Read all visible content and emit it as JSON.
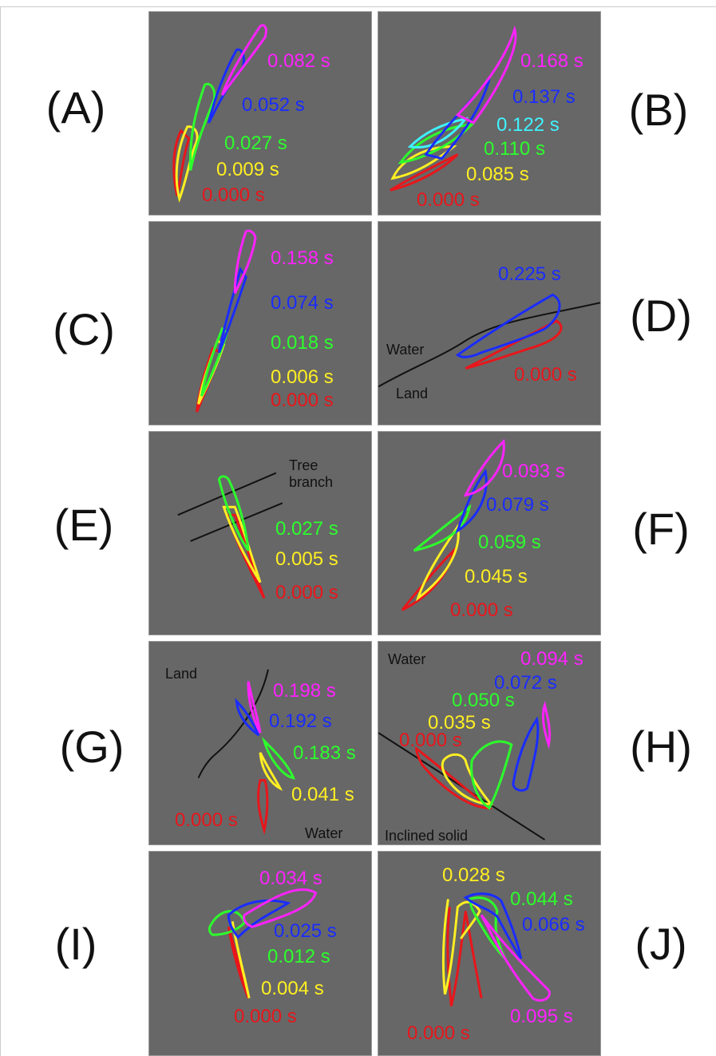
{
  "colors": {
    "red": "#e8161b",
    "yellow": "#ffef22",
    "green": "#2cff2c",
    "blue": "#1a2cff",
    "cyan": "#3ff3ff",
    "magenta": "#ff22ff",
    "panel": "#676767",
    "line": "#111111"
  },
  "panels": {
    "A": {
      "letter": "(A)",
      "times": {
        "magenta": "0.082 s",
        "blue": "0.052 s",
        "green": "0.027 s",
        "yellow": "0.009 s",
        "red": "0.000 s"
      }
    },
    "B": {
      "letter": "(B)",
      "times": {
        "magenta": "0.168 s",
        "blue": "0.137 s",
        "cyan": "0.122 s",
        "green": "0.110 s",
        "yellow": "0.085 s",
        "red": "0.000 s"
      }
    },
    "C": {
      "letter": "(C)",
      "times": {
        "magenta": "0.158 s",
        "blue": "0.074 s",
        "green": "0.018 s",
        "yellow": "0.006 s",
        "red": "0.000 s"
      }
    },
    "D": {
      "letter": "(D)",
      "times": {
        "blue": "0.225 s",
        "red": "0.000 s"
      },
      "notes": {
        "water": "Water",
        "land": "Land"
      }
    },
    "E": {
      "letter": "(E)",
      "times": {
        "green": "0.027 s",
        "yellow": "0.005 s",
        "red": "0.000 s"
      },
      "notes": {
        "branch": "Tree\nbranch"
      }
    },
    "F": {
      "letter": "(F)",
      "times": {
        "magenta": "0.093 s",
        "blue": "0.079 s",
        "green": "0.059 s",
        "yellow": "0.045 s",
        "red": "0.000 s"
      }
    },
    "G": {
      "letter": "(G)",
      "times": {
        "magenta": "0.198 s",
        "blue": "0.192 s",
        "green": "0.183 s",
        "yellow": "0.041 s",
        "red": "0.000 s"
      },
      "notes": {
        "land": "Land",
        "water": "Water"
      }
    },
    "H": {
      "letter": "(H)",
      "times": {
        "magenta": "0.094 s",
        "blue": "0.072 s",
        "green": "0.050 s",
        "yellow": "0.035 s",
        "red": "0.000 s"
      },
      "notes": {
        "water": "Water",
        "solid": "Inclined solid"
      }
    },
    "I": {
      "letter": "(I)",
      "times": {
        "magenta": "0.034 s",
        "blue": "0.025 s",
        "green": "0.012 s",
        "yellow": "0.004 s",
        "red": "0.000 s"
      }
    },
    "J": {
      "letter": "(J)",
      "times": {
        "yellow": "0.028 s",
        "green": "0.044 s",
        "blue": "0.066 s",
        "magenta": "0.095 s",
        "red": "0.000 s"
      }
    }
  }
}
